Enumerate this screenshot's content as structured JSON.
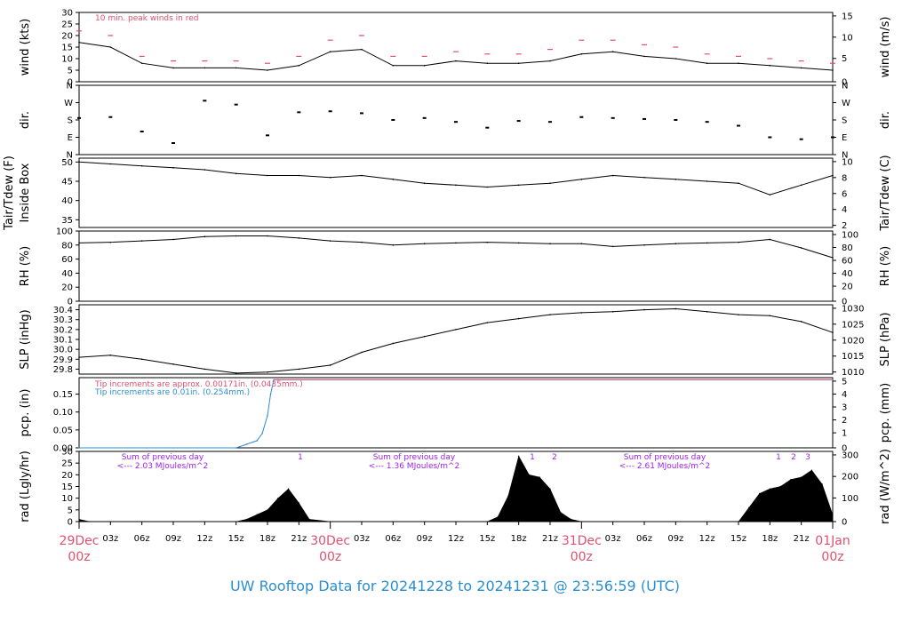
{
  "footer": "UW Rooftop Data for 20241228  to  20241231 @ 23:56:59  (UTC)",
  "x_ticks": [
    "03z",
    "06z",
    "09z",
    "12z",
    "15z",
    "18z",
    "21z",
    "03z",
    "06z",
    "09z",
    "12z",
    "15z",
    "18z",
    "21z",
    "03z",
    "06z",
    "09z",
    "12z",
    "15z",
    "18z",
    "21z"
  ],
  "x_ticks_major": [
    {
      "day": "29Dec",
      "time": "00z"
    },
    {
      "day": "30Dec",
      "time": "00z"
    },
    {
      "day": "31Dec",
      "time": "00z"
    },
    {
      "day": "01Jan",
      "time": "00z"
    }
  ],
  "chart_data": [
    {
      "type": "line",
      "ylabel_left": "wind (kts)",
      "ylabel_right": "wind (m/s)",
      "yticks_left": [
        "0",
        "5",
        "10",
        "15",
        "20",
        "25",
        "30"
      ],
      "yticks_right": [
        "0",
        "5",
        "10",
        "15"
      ],
      "ylim": [
        0,
        30
      ],
      "annotation": "10 min. peak winds in red",
      "x_hours": [
        0,
        3,
        6,
        9,
        12,
        15,
        18,
        21,
        24,
        27,
        30,
        33,
        36,
        39,
        42,
        45,
        48,
        51,
        54,
        57,
        60,
        63,
        66,
        69,
        72
      ],
      "values": [
        17,
        15,
        8,
        6,
        6,
        6,
        5,
        7,
        13,
        14,
        7,
        7,
        9,
        8,
        8,
        9,
        12,
        13,
        11,
        10,
        8,
        8,
        7,
        6,
        5
      ],
      "peak_values": [
        22,
        20,
        11,
        9,
        9,
        9,
        8,
        11,
        18,
        20,
        11,
        11,
        13,
        12,
        12,
        14,
        18,
        18,
        16,
        15,
        12,
        11,
        10,
        9,
        8
      ]
    },
    {
      "type": "scatter",
      "ylabel_left": "dir.",
      "ylabel_right": "dir.",
      "yticks_left": [
        "N",
        "E",
        "S",
        "W",
        "N"
      ],
      "yticks_right": [
        "N",
        "E",
        "S",
        "W",
        "N"
      ],
      "ylim": [
        0,
        360
      ],
      "x_hours": [
        0,
        3,
        6,
        9,
        12,
        15,
        18,
        21,
        24,
        27,
        30,
        33,
        36,
        39,
        42,
        45,
        48,
        51,
        54,
        57,
        60,
        63,
        66,
        69,
        72
      ],
      "values": [
        190,
        195,
        120,
        60,
        280,
        260,
        100,
        220,
        225,
        215,
        180,
        190,
        170,
        140,
        175,
        170,
        195,
        190,
        185,
        180,
        170,
        150,
        90,
        80,
        90
      ]
    },
    {
      "type": "line",
      "ylabel_left": "Tair/Tdew (F)",
      "ylabel_left2": "Inside Box",
      "ylabel_right": "Tair/Tdew (C)",
      "yticks_left": [
        "35",
        "40",
        "45",
        "50"
      ],
      "yticks_right": [
        "2",
        "4",
        "6",
        "8",
        "10"
      ],
      "ylim": [
        33,
        51
      ],
      "x_hours": [
        0,
        3,
        6,
        9,
        12,
        15,
        18,
        21,
        24,
        27,
        30,
        33,
        36,
        39,
        42,
        45,
        48,
        51,
        54,
        57,
        60,
        63,
        66,
        69,
        72
      ],
      "values": [
        50,
        49.5,
        49,
        48.5,
        48,
        47,
        46.5,
        46.5,
        46,
        46.5,
        45.5,
        44.5,
        44,
        43.5,
        44,
        44.5,
        45.5,
        46.5,
        46,
        45.5,
        45,
        44.5,
        41.5,
        44,
        46.5
      ]
    },
    {
      "type": "line",
      "ylabel_left": "RH (%)",
      "ylabel_right": "RH (%)",
      "yticks_left": [
        "0",
        "20",
        "40",
        "60",
        "80",
        "100"
      ],
      "yticks_right": [
        "0",
        "20",
        "40",
        "60",
        "80",
        "100"
      ],
      "ylim": [
        0,
        100
      ],
      "x_hours": [
        0,
        3,
        6,
        9,
        12,
        15,
        18,
        21,
        24,
        27,
        30,
        33,
        36,
        39,
        42,
        45,
        48,
        51,
        54,
        57,
        60,
        63,
        66,
        69,
        72
      ],
      "values": [
        83,
        84,
        86,
        88,
        92,
        93,
        93,
        90,
        86,
        84,
        80,
        82,
        83,
        84,
        83,
        82,
        82,
        78,
        80,
        82,
        83,
        84,
        88,
        76,
        62
      ]
    },
    {
      "type": "line",
      "ylabel_left": "SLP (inHg)",
      "ylabel_right": "SLP (hPa)",
      "yticks_left": [
        "29.8",
        "29.9",
        "30.0",
        "30.1",
        "30.2",
        "30.3",
        "30.4"
      ],
      "yticks_right": [
        "1010",
        "1015",
        "1020",
        "1025",
        "1030"
      ],
      "ylim": [
        29.75,
        30.45
      ],
      "x_hours": [
        0,
        3,
        6,
        9,
        12,
        15,
        18,
        21,
        24,
        27,
        30,
        33,
        36,
        39,
        42,
        45,
        48,
        51,
        54,
        57,
        60,
        63,
        66,
        69,
        72
      ],
      "values": [
        29.92,
        29.94,
        29.9,
        29.85,
        29.8,
        29.76,
        29.77,
        29.8,
        29.84,
        29.97,
        30.06,
        30.13,
        30.2,
        30.27,
        30.31,
        30.35,
        30.37,
        30.38,
        30.4,
        30.41,
        30.38,
        30.35,
        30.34,
        30.28,
        30.17
      ]
    },
    {
      "type": "line",
      "ylabel_left": "pcp. (in)",
      "ylabel_right": "pcp. (mm)",
      "yticks_left": [
        "0.00",
        "0.05",
        "0.10",
        "0.15"
      ],
      "yticks_right": [
        "0",
        "1",
        "2",
        "3",
        "4",
        "5"
      ],
      "ylim": [
        0,
        0.196
      ],
      "annotation_red": "Tip increments are approx. 0.00171in. (0.0435mm.)",
      "annotation_blue": "Tip increments are 0.01in. (0.254mm.)",
      "x_hours": [
        0,
        15,
        16,
        17,
        17.5,
        18,
        18.3,
        18.6,
        19,
        72
      ],
      "values": [
        0,
        0,
        0.01,
        0.02,
        0.04,
        0.09,
        0.15,
        0.19,
        0.19,
        0.19
      ]
    },
    {
      "type": "area",
      "ylabel_left": "rad (Lgly/hr)",
      "ylabel_right": "rad (W/m^2)",
      "yticks_left": [
        "0",
        "5",
        "10",
        "15",
        "20",
        "25",
        "30"
      ],
      "yticks_right": [
        "0",
        "100",
        "200",
        "300"
      ],
      "ylim": [
        0,
        30
      ],
      "x_hours": [
        0,
        1,
        15,
        16,
        17,
        18,
        19,
        20,
        21,
        22,
        24,
        39,
        40,
        41,
        42,
        43,
        44,
        45,
        46,
        47,
        48,
        63,
        64,
        65,
        66,
        67,
        68,
        69,
        70,
        71,
        72
      ],
      "values": [
        1,
        0,
        0,
        1,
        3,
        5,
        10,
        14,
        8,
        1,
        0,
        0,
        2,
        11,
        28,
        20,
        19,
        14,
        4,
        1,
        0,
        0,
        6,
        12,
        14,
        15,
        18,
        19,
        22,
        16,
        3
      ],
      "day_notes": [
        {
          "line1": "Sum of previous day",
          "line2": "<--- 2.03 MJoules/m^2"
        },
        {
          "line1": "Sum of previous day",
          "line2": "<--- 1.36 MJoules/m^2"
        },
        {
          "line1": "Sum of previous day",
          "line2": "<--- 2.61 MJoules/m^2"
        }
      ],
      "markers": [
        "1",
        "1",
        "2",
        "1",
        "2",
        "3"
      ]
    }
  ],
  "colors": {
    "peak": "#e0506e",
    "pcp_red": "#e0506e",
    "pcp_blue": "#2a8fd0",
    "purple": "#a020f0"
  }
}
